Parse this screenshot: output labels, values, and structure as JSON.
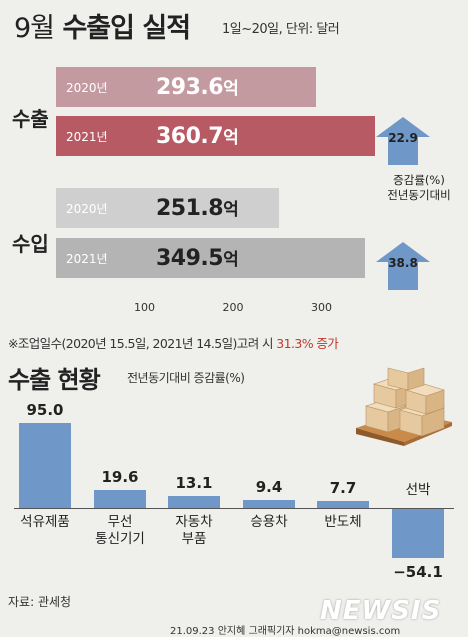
{
  "header": {
    "title_month": "9월",
    "title_main": "수출입 실적",
    "subtitle": "1일~20일, 단위: 달러"
  },
  "unit": "억",
  "groups": {
    "export_label": "수출",
    "import_label": "수입"
  },
  "arrow_caption": [
    "증감률(%)",
    "전년동기대비"
  ],
  "note": {
    "before": "※조업일수(2020년 15.5일, 2021년 14.5일)고려 시 ",
    "highlight": "31.3% 증가"
  },
  "section2": {
    "title": "수출 현황",
    "subtitle": "전년동기대비 증감률(%)"
  },
  "footer": {
    "source": "자료: 관세청",
    "credit": "21.09.23 안지혜 그래픽기자  hokma@newsis.com",
    "logo": "NEWSIS"
  },
  "colors": {
    "export_2020": "#c49aa1",
    "export_2021": "#b85a64",
    "import_2020": "#cfcfcf",
    "import_2021": "#b4b4b4",
    "arrow": "#6f97c7",
    "bar2": "#6f97c7",
    "highlight": "#c0392b"
  },
  "chart_data": [
    {
      "type": "bar",
      "orientation": "horizontal",
      "title": "9월 수출입 실적",
      "subtitle": "1일~20일, 단위: 달러",
      "categories": [
        "수출",
        "수입"
      ],
      "series": [
        {
          "name": "2020년",
          "values": [
            293.6,
            251.8
          ],
          "labels": [
            "293.6",
            "251.8"
          ]
        },
        {
          "name": "2021년",
          "values": [
            360.7,
            349.5
          ],
          "labels": [
            "360.7",
            "349.5"
          ]
        }
      ],
      "growth": [
        22.9,
        38.8
      ],
      "growth_labels": [
        "22.9",
        "38.8"
      ],
      "xticks": [
        100,
        200,
        300
      ],
      "xlim": [
        0,
        390
      ]
    },
    {
      "type": "bar",
      "title": "수출 현황",
      "subtitle": "전년동기대비 증감률(%)",
      "categories": [
        [
          "석유제품"
        ],
        [
          "무선",
          "통신기기"
        ],
        [
          "자동차",
          "부품"
        ],
        [
          "승용차"
        ],
        [
          "반도체"
        ],
        [
          "선박"
        ]
      ],
      "values": [
        95.0,
        19.6,
        13.1,
        9.4,
        7.7,
        -54.1
      ],
      "labels": [
        "95.0",
        "19.6",
        "13.1",
        "9.4",
        "7.7",
        "−54.1"
      ],
      "ylim": [
        -60,
        100
      ]
    }
  ]
}
